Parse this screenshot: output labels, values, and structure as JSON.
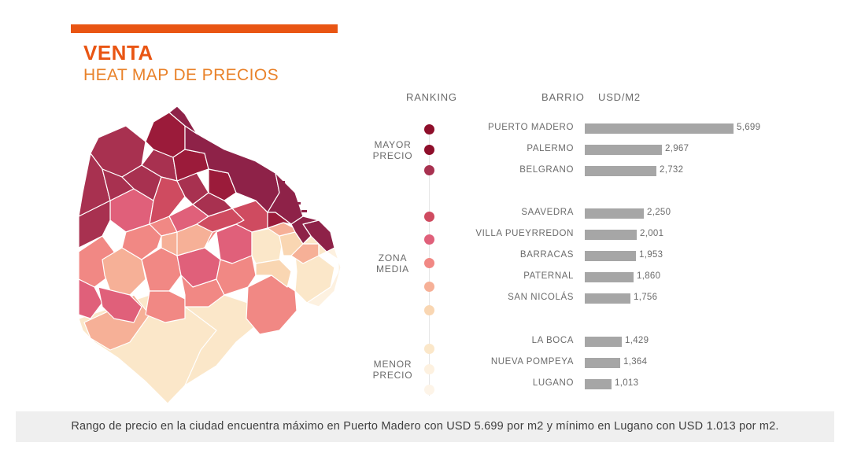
{
  "title": "VENTA",
  "subtitle": "HEAT MAP DE PRECIOS",
  "headers": {
    "ranking": "RANKING",
    "barrio": "BARRIO",
    "usd": "USD/M2"
  },
  "groups": [
    {
      "label1": "MAYOR",
      "label2": "PRECIO"
    },
    {
      "label1": "ZONA",
      "label2": "MEDIA"
    },
    {
      "label1": "MENOR",
      "label2": "PRECIO"
    }
  ],
  "colors": {
    "accent": "#e95513",
    "heat_scale": [
      "#8e0e2a",
      "#9b1b3a",
      "#a83150",
      "#cf4b60",
      "#e0607a",
      "#f18884",
      "#f6b097",
      "#f9d6b2",
      "#fbe7c9",
      "#fdf1e0"
    ],
    "bars": "#a6a6a6"
  },
  "chart_data": {
    "type": "bar",
    "orientation": "horizontal",
    "xlabel": "USD/M2",
    "ylabel": "BARRIO",
    "categories": [
      "PUERTO MADERO",
      "PALERMO",
      "BELGRANO",
      "SAAVEDRA",
      "VILLA PUEYRREDON",
      "BARRACAS",
      "PATERNAL",
      "SAN NICOLÁS",
      "LA BOCA",
      "NUEVA POMPEYA",
      "LUGANO"
    ],
    "values": [
      5699,
      2967,
      2732,
      2250,
      2001,
      1953,
      1860,
      1756,
      1429,
      1364,
      1013
    ],
    "value_labels": [
      "5,699",
      "2,967",
      "2,732",
      "2,250",
      "2,001",
      "1,953",
      "1,860",
      "1,756",
      "1,429",
      "1,364",
      "1,013"
    ],
    "groups": [
      "MAYOR PRECIO",
      "MAYOR PRECIO",
      "MAYOR PRECIO",
      "ZONA MEDIA",
      "ZONA MEDIA",
      "ZONA MEDIA",
      "ZONA MEDIA",
      "ZONA MEDIA",
      "MENOR PRECIO",
      "MENOR PRECIO",
      "MENOR PRECIO"
    ],
    "rank_colors": [
      "#8e0e2a",
      "#8e0e2a",
      "#a83150",
      "#cf4b60",
      "#e0607a",
      "#f18884",
      "#f6b097",
      "#f9d6b2",
      "#fbe7c9",
      "#fdf1e0",
      "#fdf4e8"
    ],
    "xlim": [
      0,
      5699
    ],
    "grid": false,
    "legend": "none"
  },
  "footer": "Rango de precio en la ciudad encuentra máximo en Puerto Madero con USD 5.699 por m2 y mínimo en Lugano con USD 1.013 por m2."
}
